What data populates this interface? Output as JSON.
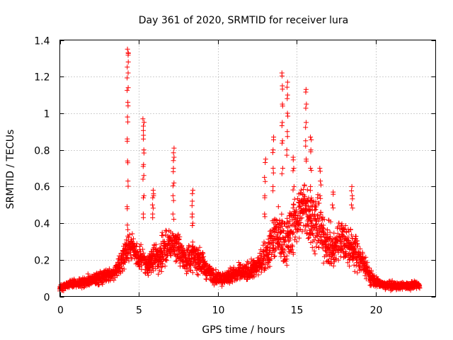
{
  "chart_data": {
    "type": "scatter",
    "title": "Day 361 of 2020, SRMTID for receiver lura",
    "xlabel": "GPS time / hours",
    "ylabel": "SRMTID / TECUs",
    "xlim": [
      0,
      23.8
    ],
    "ylim": [
      0,
      1.4
    ],
    "xticks": [
      0,
      5,
      10,
      15,
      20
    ],
    "yticks": [
      0,
      0.2,
      0.4,
      0.6,
      0.8,
      1,
      1.2,
      1.4
    ],
    "xtick_labels": [
      "0",
      "5",
      "10",
      "15",
      "20"
    ],
    "ytick_labels": [
      "0",
      "0.2",
      "0.4",
      "0.6",
      "0.8",
      "1",
      "1.2",
      "1.4"
    ],
    "grid": true,
    "marker": "+",
    "color": "#ff0000",
    "series": [
      {
        "name": "SRMTID",
        "envelope": {
          "x": [
            0,
            0.5,
            1,
            1.5,
            2,
            2.5,
            3,
            3.5,
            3.8,
            4.0,
            4.2,
            4.4,
            4.6,
            4.8,
            5.0,
            5.2,
            5.4,
            5.6,
            5.8,
            6.0,
            6.3,
            6.6,
            6.9,
            7.2,
            7.5,
            7.8,
            8.1,
            8.4,
            8.7,
            9.0,
            9.3,
            9.6,
            10.0,
            10.5,
            11.0,
            11.5,
            12.0,
            12.5,
            12.8,
            13.1,
            13.4,
            13.7,
            14.0,
            14.3,
            14.6,
            14.9,
            15.2,
            15.5,
            15.8,
            16.1,
            16.4,
            16.7,
            17.0,
            17.3,
            17.6,
            17.9,
            18.2,
            18.5,
            18.8,
            19.1,
            19.4,
            19.7,
            20.0,
            20.3,
            20.6,
            21.0,
            21.5,
            22.0,
            22.5,
            22.8
          ],
          "median": [
            0.05,
            0.06,
            0.07,
            0.08,
            0.09,
            0.1,
            0.11,
            0.13,
            0.18,
            0.22,
            0.25,
            0.28,
            0.27,
            0.25,
            0.2,
            0.22,
            0.18,
            0.16,
            0.2,
            0.22,
            0.22,
            0.25,
            0.28,
            0.3,
            0.26,
            0.22,
            0.2,
            0.22,
            0.2,
            0.18,
            0.15,
            0.12,
            0.1,
            0.1,
            0.12,
            0.13,
            0.14,
            0.16,
            0.2,
            0.24,
            0.3,
            0.34,
            0.32,
            0.28,
            0.35,
            0.4,
            0.45,
            0.5,
            0.45,
            0.4,
            0.38,
            0.32,
            0.28,
            0.25,
            0.3,
            0.32,
            0.28,
            0.26,
            0.24,
            0.2,
            0.15,
            0.1,
            0.08,
            0.07,
            0.06,
            0.06,
            0.06,
            0.06,
            0.06,
            0.06
          ],
          "spread": [
            0.03,
            0.03,
            0.03,
            0.04,
            0.04,
            0.05,
            0.05,
            0.06,
            0.08,
            0.1,
            0.1,
            0.1,
            0.1,
            0.1,
            0.1,
            0.12,
            0.1,
            0.1,
            0.1,
            0.12,
            0.12,
            0.12,
            0.12,
            0.12,
            0.12,
            0.12,
            0.12,
            0.12,
            0.1,
            0.1,
            0.08,
            0.06,
            0.05,
            0.06,
            0.06,
            0.07,
            0.07,
            0.08,
            0.1,
            0.14,
            0.16,
            0.2,
            0.2,
            0.2,
            0.2,
            0.22,
            0.22,
            0.22,
            0.22,
            0.22,
            0.2,
            0.18,
            0.16,
            0.15,
            0.15,
            0.15,
            0.15,
            0.15,
            0.14,
            0.12,
            0.08,
            0.05,
            0.04,
            0.03,
            0.03,
            0.03,
            0.03,
            0.03,
            0.03,
            0.03
          ]
        },
        "spikes": [
          {
            "x": 4.3,
            "values": [
              0.39,
              0.49,
              0.63,
              0.74,
              0.86,
              0.98,
              1.06,
              1.14,
              1.22,
              1.28,
              1.33,
              1.35
            ]
          },
          {
            "x": 5.3,
            "values": [
              0.45,
              0.55,
              0.66,
              0.72,
              0.8,
              0.88,
              0.93,
              0.97
            ]
          },
          {
            "x": 5.9,
            "values": [
              0.45,
              0.5,
              0.55,
              0.58
            ]
          },
          {
            "x": 7.2,
            "values": [
              0.45,
              0.55,
              0.62,
              0.7,
              0.76,
              0.81
            ]
          },
          {
            "x": 8.4,
            "values": [
              0.4,
              0.45,
              0.52,
              0.58
            ]
          },
          {
            "x": 13.0,
            "values": [
              0.45,
              0.55,
              0.65,
              0.75
            ]
          },
          {
            "x": 13.5,
            "values": [
              0.6,
              0.7,
              0.8,
              0.87
            ]
          },
          {
            "x": 14.1,
            "values": [
              0.7,
              0.85,
              0.95,
              1.05,
              1.15,
              1.22
            ]
          },
          {
            "x": 14.4,
            "values": [
              0.8,
              0.9,
              1.0,
              1.1,
              1.17
            ]
          },
          {
            "x": 14.8,
            "values": [
              0.5,
              0.6,
              0.7,
              0.76
            ]
          },
          {
            "x": 15.6,
            "values": [
              0.75,
              0.85,
              0.95,
              1.05,
              1.13
            ]
          },
          {
            "x": 15.9,
            "values": [
              0.6,
              0.7,
              0.8,
              0.87
            ]
          },
          {
            "x": 16.5,
            "values": [
              0.55,
              0.63,
              0.7
            ]
          },
          {
            "x": 17.3,
            "values": [
              0.5,
              0.57
            ]
          },
          {
            "x": 18.5,
            "values": [
              0.5,
              0.55,
              0.6
            ]
          }
        ]
      }
    ]
  }
}
